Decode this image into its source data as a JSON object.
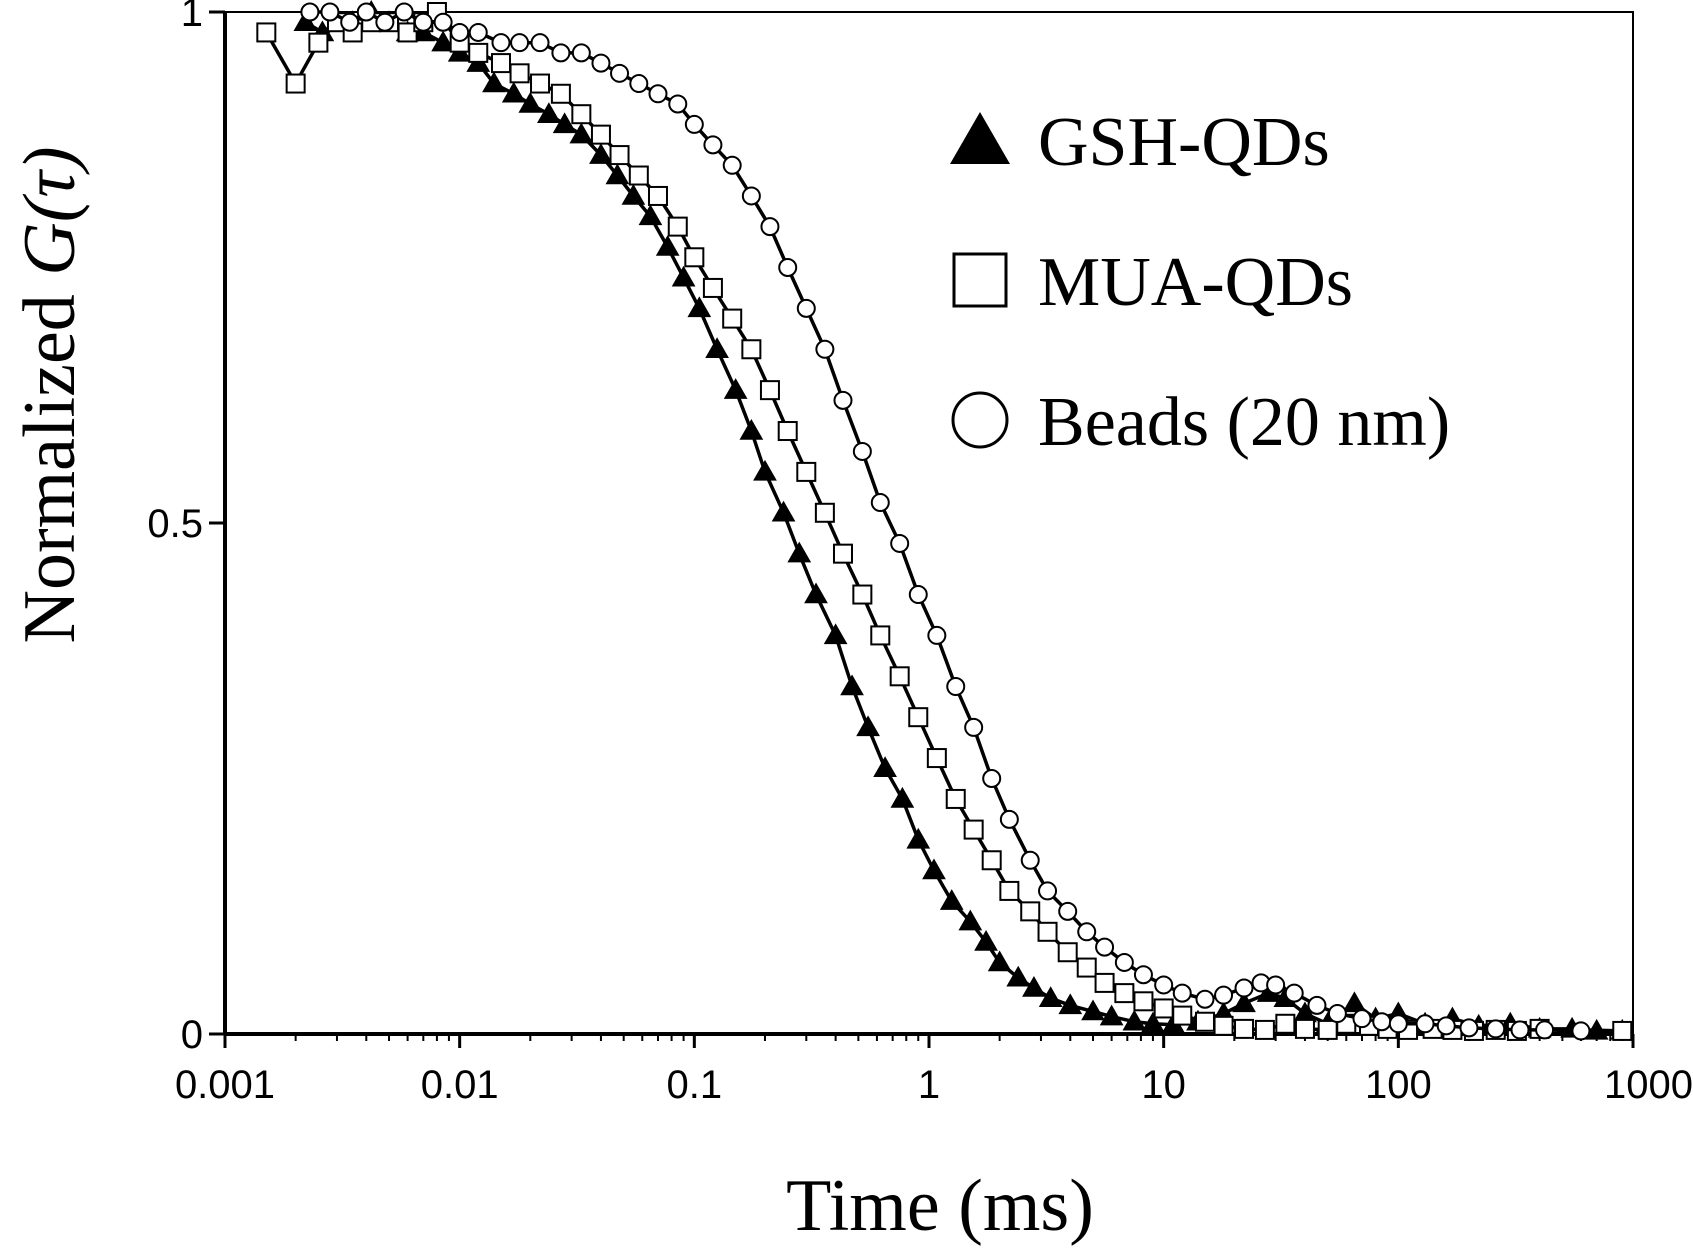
{
  "chart_data": {
    "type": "scatter",
    "title": "",
    "xlabel": "Time (ms)",
    "ylabel_prefix": "Normalized ",
    "ylabel_symbol": "G(τ)",
    "xscale": "log",
    "xlim": [
      0.001,
      1000
    ],
    "ylim": [
      0,
      1
    ],
    "xticks": [
      0.001,
      0.01,
      0.1,
      1,
      10,
      100,
      1000
    ],
    "xtick_labels": [
      "0.001",
      "0.01",
      "0.1",
      "1",
      "10",
      "100",
      "1000"
    ],
    "yticks": [
      0,
      0.5,
      1
    ],
    "ytick_labels": [
      "0",
      "0.5",
      "1"
    ],
    "grid": false,
    "legend_position": "top-right",
    "series": [
      {
        "name": "GSH-QDs",
        "marker": "filled-triangle",
        "x": [
          0.0022,
          0.0026,
          0.003,
          0.0035,
          0.0042,
          0.005,
          0.006,
          0.007,
          0.0085,
          0.01,
          0.012,
          0.014,
          0.017,
          0.02,
          0.024,
          0.028,
          0.033,
          0.04,
          0.047,
          0.055,
          0.065,
          0.077,
          0.09,
          0.105,
          0.125,
          0.15,
          0.175,
          0.2,
          0.24,
          0.28,
          0.33,
          0.4,
          0.47,
          0.55,
          0.65,
          0.77,
          0.9,
          1.05,
          1.25,
          1.5,
          1.75,
          2.0,
          2.4,
          2.8,
          3.3,
          4.0,
          5.0,
          6.0,
          7.5,
          9.0,
          11,
          14,
          18,
          22,
          28,
          33,
          40,
          50,
          65,
          80,
          100,
          130,
          170,
          220,
          300,
          400,
          550,
          700,
          900
        ],
        "y": [
          0.99,
          0.98,
          0.99,
          0.99,
          1.0,
          0.99,
          0.98,
          0.98,
          0.97,
          0.96,
          0.95,
          0.93,
          0.92,
          0.91,
          0.9,
          0.89,
          0.88,
          0.86,
          0.84,
          0.82,
          0.8,
          0.77,
          0.74,
          0.71,
          0.67,
          0.63,
          0.59,
          0.55,
          0.51,
          0.47,
          0.43,
          0.39,
          0.34,
          0.3,
          0.26,
          0.23,
          0.19,
          0.16,
          0.13,
          0.11,
          0.09,
          0.07,
          0.055,
          0.045,
          0.035,
          0.028,
          0.022,
          0.017,
          0.012,
          0.01,
          0.009,
          0.012,
          0.02,
          0.03,
          0.04,
          0.035,
          0.02,
          0.01,
          0.03,
          0.015,
          0.02,
          0.01,
          0.015,
          0.008,
          0.01,
          0.005,
          0.005,
          0.003,
          0.003
        ]
      },
      {
        "name": "MUA-QDs",
        "marker": "open-square",
        "x": [
          0.0015,
          0.002,
          0.0025,
          0.003,
          0.0035,
          0.0042,
          0.005,
          0.006,
          0.007,
          0.008,
          0.01,
          0.012,
          0.015,
          0.018,
          0.022,
          0.027,
          0.033,
          0.04,
          0.048,
          0.058,
          0.07,
          0.085,
          0.1,
          0.12,
          0.145,
          0.175,
          0.21,
          0.25,
          0.3,
          0.36,
          0.43,
          0.52,
          0.62,
          0.75,
          0.9,
          1.08,
          1.3,
          1.55,
          1.85,
          2.2,
          2.7,
          3.2,
          3.9,
          4.7,
          5.6,
          6.8,
          8.2,
          10,
          12,
          15,
          18,
          22,
          27,
          33,
          40,
          50,
          60,
          75,
          90,
          110,
          140,
          170,
          210,
          260,
          320,
          400,
          900
        ],
        "y": [
          0.98,
          0.93,
          0.97,
          0.99,
          0.98,
          0.99,
          0.99,
          0.98,
          0.99,
          1.0,
          0.97,
          0.96,
          0.95,
          0.94,
          0.93,
          0.92,
          0.9,
          0.88,
          0.86,
          0.84,
          0.82,
          0.79,
          0.76,
          0.73,
          0.7,
          0.67,
          0.63,
          0.59,
          0.55,
          0.51,
          0.47,
          0.43,
          0.39,
          0.35,
          0.31,
          0.27,
          0.23,
          0.2,
          0.17,
          0.14,
          0.12,
          0.1,
          0.08,
          0.065,
          0.05,
          0.04,
          0.032,
          0.025,
          0.018,
          0.012,
          0.008,
          0.005,
          0.004,
          0.01,
          0.005,
          0.004,
          0.01,
          0.008,
          0.005,
          0.004,
          0.005,
          0.004,
          0.003,
          0.004,
          0.003,
          0.005,
          0.003
        ]
      },
      {
        "name": "Beads (20 nm)",
        "marker": "open-circle",
        "x": [
          0.0023,
          0.0028,
          0.0034,
          0.004,
          0.0048,
          0.0058,
          0.007,
          0.0085,
          0.01,
          0.012,
          0.015,
          0.018,
          0.022,
          0.027,
          0.033,
          0.04,
          0.048,
          0.058,
          0.07,
          0.085,
          0.1,
          0.12,
          0.145,
          0.175,
          0.21,
          0.25,
          0.3,
          0.36,
          0.43,
          0.52,
          0.62,
          0.75,
          0.9,
          1.08,
          1.3,
          1.55,
          1.85,
          2.2,
          2.7,
          3.2,
          3.9,
          4.7,
          5.6,
          6.8,
          8.2,
          10,
          12,
          15,
          18,
          22,
          26,
          30,
          36,
          45,
          55,
          70,
          85,
          100,
          130,
          160,
          200,
          260,
          330,
          420,
          600
        ],
        "y": [
          1.0,
          1.0,
          0.99,
          1.0,
          0.99,
          1.0,
          0.99,
          0.99,
          0.98,
          0.98,
          0.97,
          0.97,
          0.97,
          0.96,
          0.96,
          0.95,
          0.94,
          0.93,
          0.92,
          0.91,
          0.89,
          0.87,
          0.85,
          0.82,
          0.79,
          0.75,
          0.71,
          0.67,
          0.62,
          0.57,
          0.52,
          0.48,
          0.43,
          0.39,
          0.34,
          0.3,
          0.25,
          0.21,
          0.17,
          0.14,
          0.12,
          0.1,
          0.085,
          0.07,
          0.058,
          0.048,
          0.04,
          0.034,
          0.038,
          0.045,
          0.05,
          0.048,
          0.04,
          0.028,
          0.02,
          0.015,
          0.012,
          0.01,
          0.01,
          0.008,
          0.006,
          0.005,
          0.004,
          0.004,
          0.003
        ]
      }
    ]
  }
}
